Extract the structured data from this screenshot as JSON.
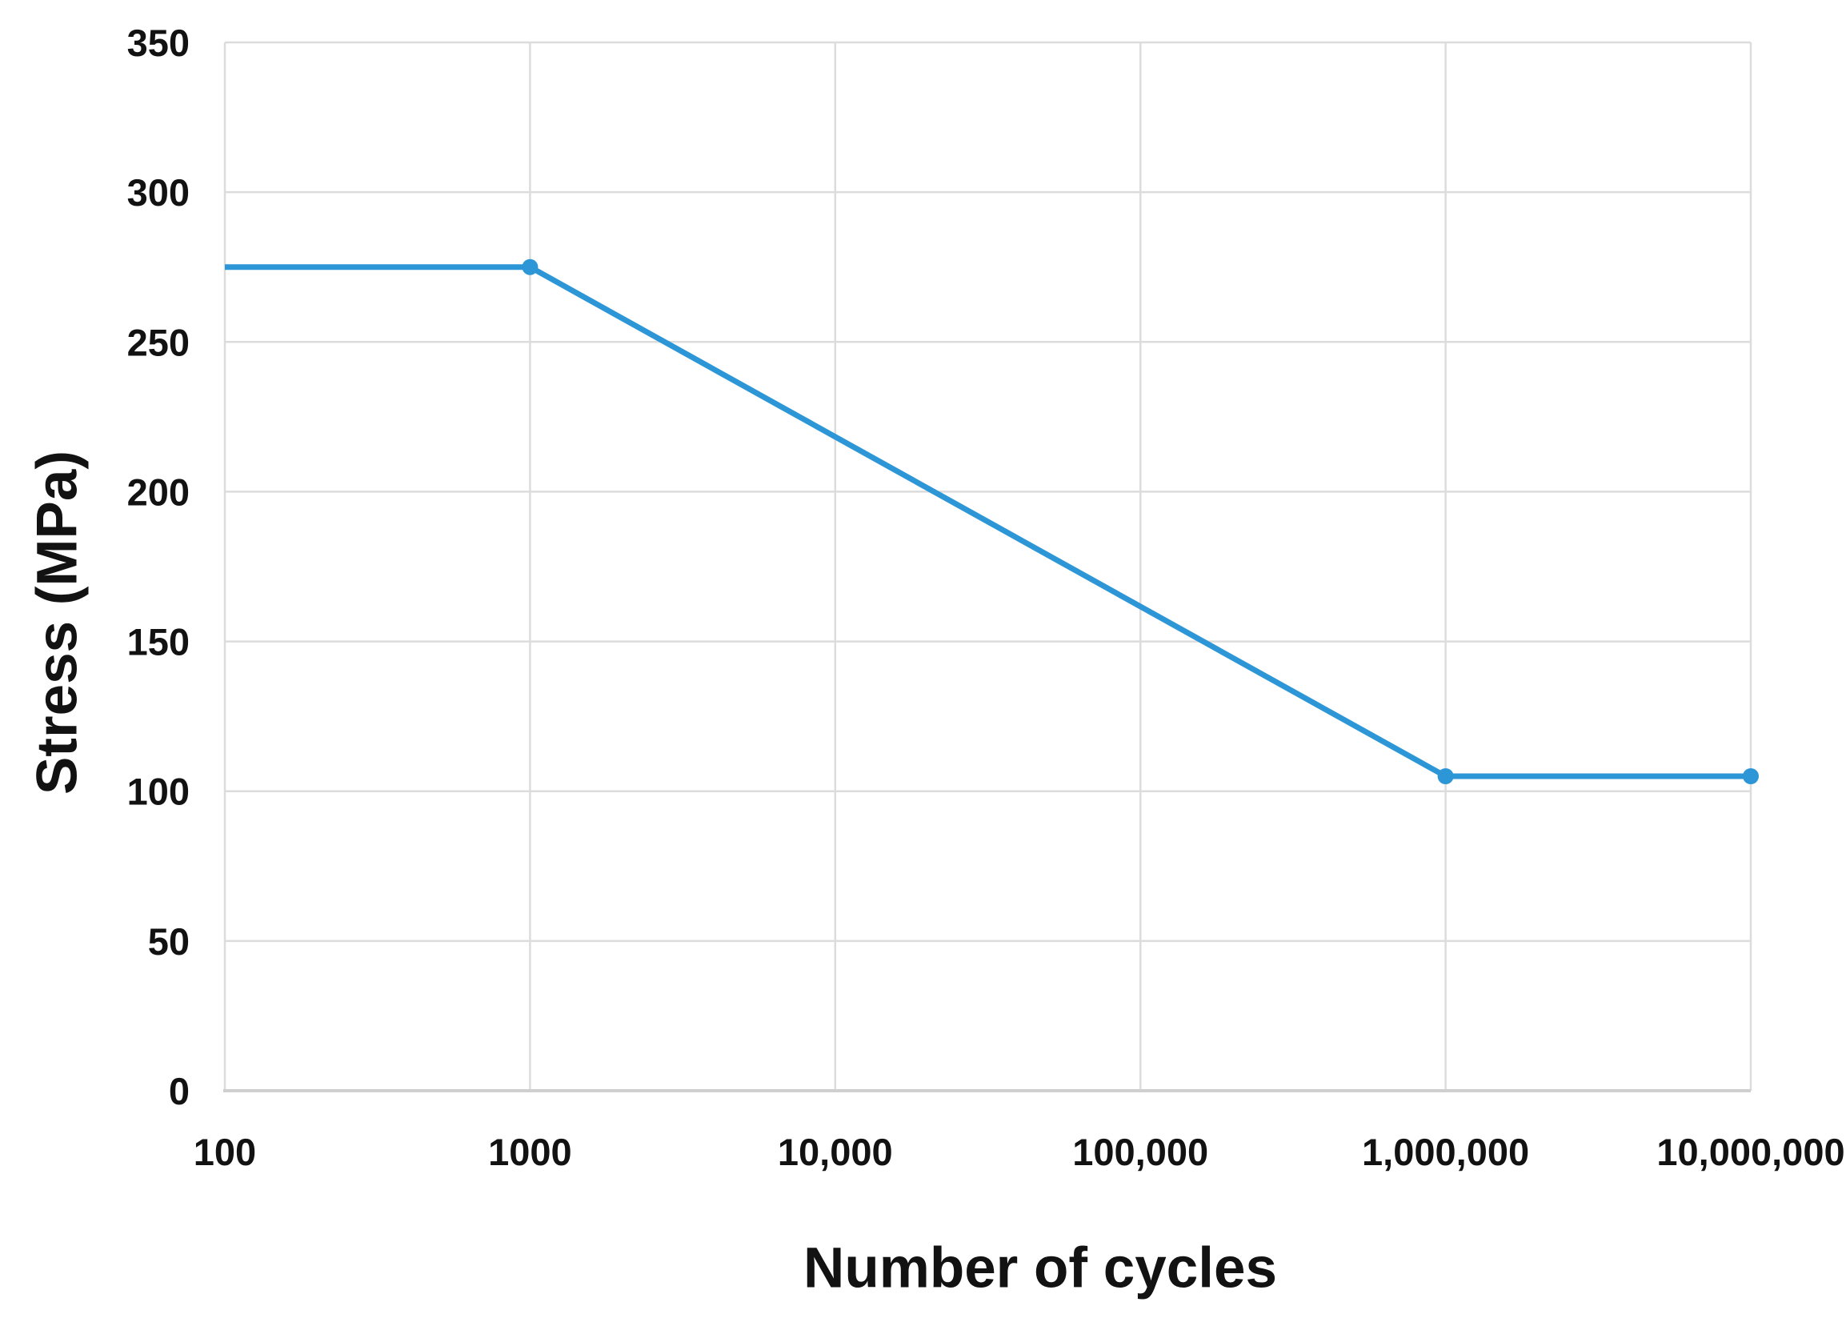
{
  "chart_data": {
    "type": "line",
    "title": "",
    "xlabel": "Number of cycles",
    "ylabel": "Stress (MPa)",
    "x_scale": "log",
    "xlim": [
      100,
      10000000
    ],
    "ylim": [
      0,
      350
    ],
    "grid": true,
    "legend": "none",
    "x_ticks": [
      {
        "value": 100,
        "label": "100"
      },
      {
        "value": 1000,
        "label": "1000"
      },
      {
        "value": 10000,
        "label": "10,000"
      },
      {
        "value": 100000,
        "label": "100,000"
      },
      {
        "value": 1000000,
        "label": "1,000,000"
      },
      {
        "value": 10000000,
        "label": "10,000,000"
      }
    ],
    "y_ticks": [
      {
        "value": 0,
        "label": "0"
      },
      {
        "value": 50,
        "label": "50"
      },
      {
        "value": 100,
        "label": "100"
      },
      {
        "value": 150,
        "label": "150"
      },
      {
        "value": 200,
        "label": "200"
      },
      {
        "value": 250,
        "label": "250"
      },
      {
        "value": 300,
        "label": "300"
      },
      {
        "value": 350,
        "label": "350"
      }
    ],
    "colors": {
      "line": "#2D96D6",
      "grid": "#DCDCDC",
      "axis": "#CFCFCF",
      "text": "#121212",
      "background": "#FFFFFF"
    },
    "series": [
      {
        "color": "#2D96D6",
        "line_width": 7,
        "marker": "circle",
        "marker_size": 10,
        "points": [
          {
            "x": 100,
            "y": 275,
            "marker": false
          },
          {
            "x": 1000,
            "y": 275,
            "marker": true
          },
          {
            "x": 1000000,
            "y": 105,
            "marker": true
          },
          {
            "x": 10000000,
            "y": 105,
            "marker": true
          }
        ]
      }
    ]
  }
}
